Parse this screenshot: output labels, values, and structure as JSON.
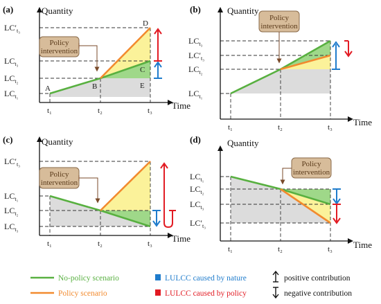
{
  "colors": {
    "no_policy": "#58b040",
    "policy": "#f28a2e",
    "nature": "#1f7ccc",
    "policy_effect": "#e21b23",
    "yellow_fill": "#fbf29a",
    "green_fill": "#9fd889",
    "grey_fill": "#dcdcdc",
    "box_fill": "#d7bc9a",
    "box_stroke": "#8a6a4a"
  },
  "panels": [
    {
      "tag": "(a)",
      "y_title": "Quantity",
      "x_title": "Time",
      "policy_box": [
        "Policy",
        "intervention"
      ],
      "y_labels": [
        {
          "main": "LC′",
          "sub": "t₃"
        },
        {
          "main": "LC",
          "sub": "t₃"
        },
        {
          "main": "LC",
          "sub": "t₂"
        },
        {
          "main": "LC",
          "sub": "t₁"
        }
      ],
      "x_ticks": [
        "t₁",
        "t₂",
        "t₃"
      ],
      "points": [
        "A",
        "B",
        "C",
        "D",
        "E"
      ]
    },
    {
      "tag": "(b)",
      "y_title": "Quantity",
      "x_title": "Time",
      "policy_box": [
        "Policy",
        "intervention"
      ],
      "y_labels": [
        {
          "main": "LC",
          "sub": "t₃"
        },
        {
          "main": "LC′",
          "sub": "t₃"
        },
        {
          "main": "LC",
          "sub": "t₂"
        },
        {
          "main": "LC",
          "sub": "t₁"
        }
      ],
      "x_ticks": [
        "t₁",
        "t₂",
        "t₃"
      ]
    },
    {
      "tag": "(c)",
      "y_title": "Quantity",
      "x_title": "Time",
      "policy_box": [
        "Policy",
        "intervention"
      ],
      "y_labels": [
        {
          "main": "LC′",
          "sub": "t₃"
        },
        {
          "main": "LC",
          "sub": "t₁"
        },
        {
          "main": "LC",
          "sub": "t₂"
        },
        {
          "main": "LC",
          "sub": "t₃"
        }
      ],
      "x_ticks": [
        "t₁",
        "t₂",
        "t₃"
      ]
    },
    {
      "tag": "(d)",
      "y_title": "Quantity",
      "x_title": "Time",
      "policy_box": [
        "Policy",
        "intervention"
      ],
      "y_labels": [
        {
          "main": "LC",
          "sub": "t₁"
        },
        {
          "main": "LC",
          "sub": "t₂"
        },
        {
          "main": "LC",
          "sub": "t₃"
        },
        {
          "main": "LC′",
          "sub": "t₃"
        }
      ],
      "x_ticks": [
        "t₁",
        "t₂",
        "t₃"
      ]
    }
  ],
  "legend": {
    "no_policy": "No-policy scenario",
    "policy": "Policy scenario",
    "nature": "LULCC caused by nature",
    "policy_effect": "LULCC caused by policy",
    "positive": "positive contribution",
    "negative": "negative contribution"
  }
}
